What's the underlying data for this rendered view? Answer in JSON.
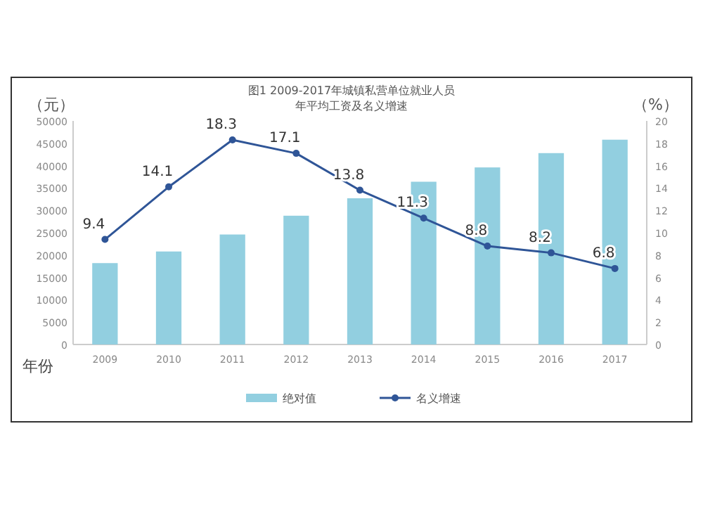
{
  "chart_data": {
    "type": "bar",
    "title": "图1 2009-2017年城镇私营单位就业人员",
    "subtitle": "年平均工资及名义增速",
    "xlabel": "年份",
    "ylabel": "（元）",
    "y2label": "（%）",
    "categories": [
      "2009",
      "2010",
      "2011",
      "2012",
      "2013",
      "2014",
      "2015",
      "2016",
      "2017"
    ],
    "series": [
      {
        "name": "绝对值",
        "color": "#92cfe0",
        "values": [
          18200,
          20800,
          24600,
          28800,
          32700,
          36400,
          39600,
          42800,
          45800
        ]
      },
      {
        "name": "名义增速",
        "type": "line",
        "axis": "y2",
        "color": "#2f5597",
        "marker": "circle",
        "values": [
          9.4,
          14.1,
          18.3,
          17.1,
          13.8,
          11.3,
          8.8,
          8.2,
          6.8
        ],
        "value_labels": [
          "9.4",
          "14.1",
          "18.3",
          "17.1",
          "13.8",
          "11.3",
          "8.8",
          "8.2",
          "6.8"
        ]
      }
    ],
    "ylim": [
      0,
      50000
    ],
    "yticks": [
      0,
      5000,
      10000,
      15000,
      20000,
      25000,
      30000,
      35000,
      40000,
      45000,
      50000
    ],
    "y2lim": [
      0,
      20
    ],
    "y2ticks": [
      0,
      2,
      4,
      6,
      8,
      10,
      12,
      14,
      16,
      18,
      20
    ],
    "legend": "bottom",
    "grid": false
  }
}
